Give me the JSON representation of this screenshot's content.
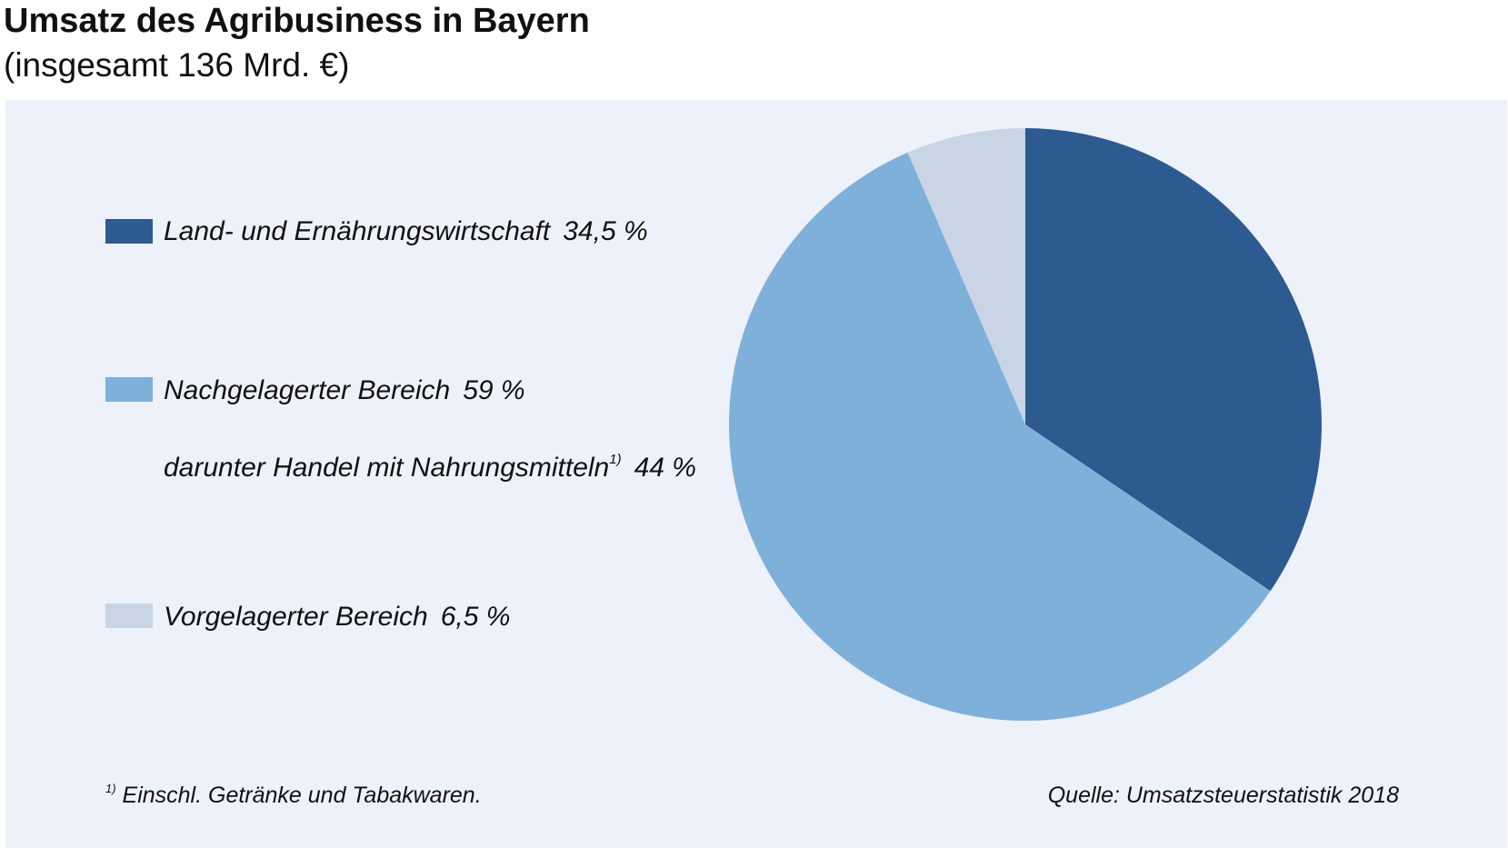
{
  "header": {
    "title": "Umsatz des Agribusiness in Bayern",
    "subtitle": "(insgesamt 136 Mrd. €)"
  },
  "legend": {
    "items": [
      {
        "label": "Land- und Ernährungswirtschaft",
        "value": "34,5 %",
        "color": "#2d5a91"
      },
      {
        "label": "Nachgelagerter Bereich",
        "value": "59 %",
        "color": "#7fb0da"
      },
      {
        "label": "Vorgelagerter Bereich",
        "value": "6,5 %",
        "color": "#c9d5e4"
      }
    ],
    "sub_item": {
      "label": "darunter Handel mit Nahrungsmitteln",
      "marker": "1)",
      "value": "44 %"
    }
  },
  "footer": {
    "footnote_marker": "1)",
    "footnote": "Einschl. Getränke und Tabakwaren.",
    "source": "Quelle: Umsatzsteuerstatistik 2018"
  },
  "colors": {
    "panel_background": "#edf1f9",
    "land": "#2d5a91",
    "nachgelagert": "#7fb0da",
    "vorgelagert": "#c9d5e4"
  },
  "chart_data": {
    "type": "pie",
    "title": "Umsatz des Agribusiness in Bayern",
    "subtitle": "(insgesamt 136 Mrd. €)",
    "unit": "%",
    "start_angle_deg": 0,
    "direction": "clockwise",
    "legend_position": "left",
    "slices": [
      {
        "label": "Land- und Ernährungswirtschaft",
        "value": 34.5,
        "color": "#2d5a91"
      },
      {
        "label": "Nachgelagerter Bereich",
        "value": 59,
        "color": "#7fb0da"
      },
      {
        "label": "Vorgelagerter Bereich",
        "value": 6.5,
        "color": "#c9d5e4"
      }
    ]
  }
}
